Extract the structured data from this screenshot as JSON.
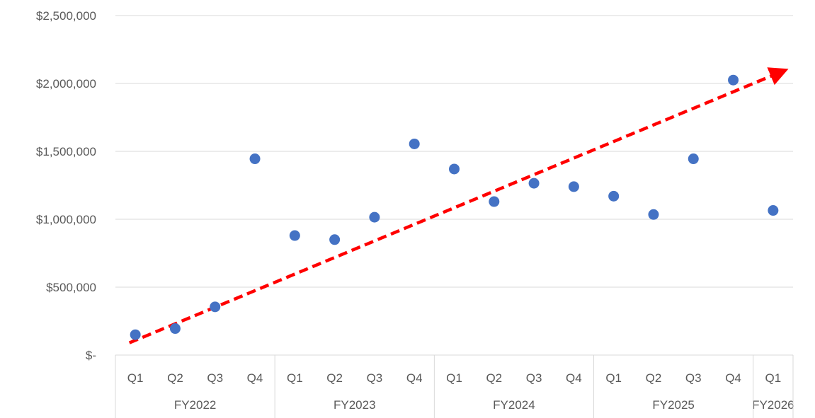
{
  "chart_data": {
    "type": "scatter",
    "y_ticks": [
      {
        "value": 0,
        "label": "$-"
      },
      {
        "value": 500000,
        "label": "$500,000"
      },
      {
        "value": 1000000,
        "label": "$1,000,000"
      },
      {
        "value": 1500000,
        "label": "$1,500,000"
      },
      {
        "value": 2000000,
        "label": "$2,000,000"
      },
      {
        "value": 2500000,
        "label": "$2,500,000"
      }
    ],
    "ylim": [
      0,
      2500000
    ],
    "groups": [
      {
        "label": "FY2022",
        "quarters": [
          "Q1",
          "Q2",
          "Q3",
          "Q4"
        ]
      },
      {
        "label": "FY2023",
        "quarters": [
          "Q1",
          "Q2",
          "Q3",
          "Q4"
        ]
      },
      {
        "label": "FY2024",
        "quarters": [
          "Q1",
          "Q2",
          "Q3",
          "Q4"
        ]
      },
      {
        "label": "FY2025",
        "quarters": [
          "Q1",
          "Q2",
          "Q3",
          "Q4"
        ]
      },
      {
        "label": "FY2026",
        "quarters": [
          "Q1"
        ]
      }
    ],
    "values": [
      150000,
      195000,
      355000,
      1445000,
      880000,
      850000,
      1015000,
      1555000,
      1370000,
      1130000,
      1265000,
      1240000,
      1170000,
      1035000,
      1445000,
      2025000,
      1065000
    ],
    "point_color": "#4472C4",
    "trend_arrow": {
      "color": "#FF0000",
      "start": [
        0.85,
        90000
      ],
      "end": [
        17.2,
        2085000
      ]
    },
    "grid": true,
    "legend": "none"
  }
}
